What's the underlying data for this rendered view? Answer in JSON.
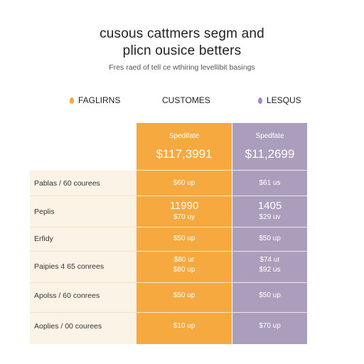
{
  "title": {
    "line1": "cusous cattmers segm and",
    "line2": "plicn ousice betters"
  },
  "subtitle": "Fres raed of tell ce wthiring levellibit basings",
  "columns": {
    "left": {
      "label": "FAGLIRNS",
      "color": "#f5a93f"
    },
    "middle": {
      "label": "CUSTOMES"
    },
    "right": {
      "label": "LESQUS",
      "color": "#a888c8"
    }
  },
  "plans": {
    "orange": {
      "name": "Spedifate",
      "price": "$117,3991",
      "color": "#f5a93f"
    },
    "purple": {
      "name": "Spedfate",
      "price": "$11,2699",
      "color": "#ab9ebd"
    }
  },
  "rows": [
    {
      "label": "Pablas / 60 courees",
      "orange": [
        "$60 up"
      ],
      "purple": [
        "$61 us"
      ]
    },
    {
      "label": "Peplis",
      "orange": [
        "11990",
        "$70 uy"
      ],
      "purple": [
        "1405",
        "$29 uv"
      ]
    },
    {
      "label": "Erfidy",
      "orange": [
        "$50 up"
      ],
      "purple": [
        "$50 up"
      ]
    },
    {
      "label": "Paipies 4 65 conrees",
      "orange": [
        "$80 ur",
        "$80 up"
      ],
      "purple": [
        "$74 ur",
        "$92 us"
      ]
    },
    {
      "label": "Apolss / 60 conrees",
      "orange": [
        "$50 up"
      ],
      "purple": [
        "$50 up"
      ]
    },
    {
      "label": "Aoplies / 00 courees",
      "orange": [
        "$10 up"
      ],
      "purple": [
        "$70 up"
      ]
    }
  ]
}
